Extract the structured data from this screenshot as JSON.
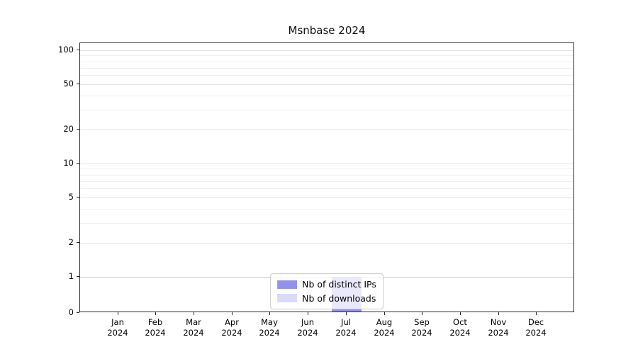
{
  "chart_data": {
    "type": "bar",
    "title": "Msnbase 2024",
    "categories": [
      "Jan",
      "Feb",
      "Mar",
      "Apr",
      "May",
      "Jun",
      "Jul",
      "Aug",
      "Sep",
      "Oct",
      "Nov",
      "Dec"
    ],
    "category_year": "2024",
    "series": [
      {
        "name": "Nb of distinct IPs",
        "color": "#9292ec",
        "values": [
          0,
          0,
          0,
          0,
          0,
          0,
          1,
          0,
          0,
          0,
          0,
          0
        ]
      },
      {
        "name": "Nb of downloads",
        "color": "#d9d9fb",
        "values": [
          0,
          0,
          0,
          0,
          0,
          0,
          1,
          0,
          0,
          0,
          0,
          0
        ]
      }
    ],
    "yscale": "symlog",
    "yticks": [
      0,
      1,
      2,
      5,
      10,
      20,
      50,
      100
    ],
    "ytick_labels": [
      "0",
      "1",
      "2",
      "5",
      "10",
      "20",
      "50",
      "100"
    ],
    "ylim": [
      0,
      110
    ],
    "grid": "horizontal",
    "legend_position": "lower center"
  }
}
